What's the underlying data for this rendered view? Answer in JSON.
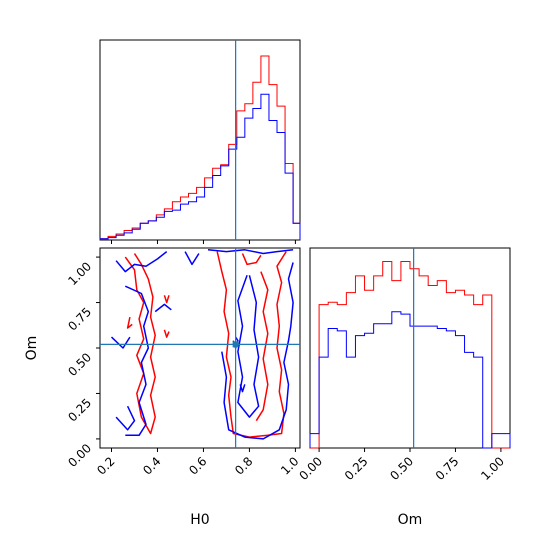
{
  "chart_data": {
    "type": "corner",
    "parameters": [
      "H0",
      "Om"
    ],
    "axis_labels": {
      "x_left": "H0",
      "x_right": "Om",
      "y_left": "Om"
    },
    "colors": {
      "red": "#ff0000",
      "blue": "#0000ff",
      "truth": "#1f77b4"
    },
    "truth": {
      "H0": 0.74,
      "Om": 0.52
    },
    "h0_range": [
      0.15,
      1.02
    ],
    "om_range": [
      -0.05,
      1.05
    ],
    "h0_ticks": [
      "0.2",
      "0.4",
      "0.6",
      "0.8",
      "1.0"
    ],
    "h0_tick_values": [
      0.2,
      0.4,
      0.6,
      0.8,
      1.0
    ],
    "om_ticks": [
      "0.00",
      "0.25",
      "0.50",
      "0.75",
      "1.00"
    ],
    "om_tick_values": [
      0.0,
      0.25,
      0.5,
      0.75,
      1.0
    ],
    "h0_hist": {
      "bin_edges": [
        0.15,
        0.185,
        0.22,
        0.255,
        0.29,
        0.325,
        0.36,
        0.395,
        0.43,
        0.465,
        0.5,
        0.535,
        0.57,
        0.605,
        0.64,
        0.675,
        0.71,
        0.745,
        0.78,
        0.815,
        0.85,
        0.885,
        0.92,
        0.955,
        0.99,
        1.02
      ],
      "series": [
        {
          "color": "red",
          "values": [
            0.5,
            1.5,
            2.5,
            4.0,
            5.0,
            7.0,
            8.0,
            10.5,
            13.0,
            16.0,
            18.0,
            19.5,
            22.0,
            26.0,
            30.0,
            31.5,
            40.0,
            54.0,
            57.0,
            66.0,
            77.0,
            65.0,
            56.0,
            32.0,
            7.0
          ]
        },
        {
          "color": "blue",
          "values": [
            0.5,
            1.0,
            2.0,
            3.0,
            4.5,
            7.0,
            8.0,
            9.5,
            12.0,
            12.5,
            15.0,
            16.0,
            18.0,
            22.0,
            27.0,
            31.0,
            38.0,
            43.0,
            51.0,
            55.0,
            61.0,
            50.0,
            45.0,
            28.0,
            7.0
          ]
        }
      ],
      "ymax": 82
    },
    "om_hist": {
      "bin_edges": [
        -0.05,
        0.0,
        0.05,
        0.1,
        0.15,
        0.2,
        0.25,
        0.3,
        0.35,
        0.4,
        0.45,
        0.5,
        0.55,
        0.6,
        0.65,
        0.7,
        0.75,
        0.8,
        0.85,
        0.9,
        0.95,
        1.0,
        1.05
      ],
      "series": [
        {
          "color": "red",
          "values": [
            0,
            60.0,
            61.0,
            60.0,
            65.0,
            72.0,
            66.0,
            72.0,
            78.0,
            70.0,
            78.0,
            75.0,
            72.0,
            68.0,
            70.0,
            65.0,
            66.0,
            64.0,
            60.0,
            64.0,
            0,
            0
          ]
        },
        {
          "color": "blue",
          "values": [
            6.0,
            38.0,
            50.0,
            49.0,
            38.0,
            47.0,
            48.0,
            52.0,
            52.0,
            57.0,
            56.0,
            51.0,
            51.0,
            51.0,
            50.0,
            49.0,
            47.0,
            40.0,
            38.0,
            0,
            6.0,
            6.0
          ]
        }
      ],
      "ymax": 82
    },
    "contours": [
      {
        "color": "red",
        "path": [
          [
            0.26,
            1.0
          ],
          [
            0.3,
            0.93
          ],
          [
            0.31,
            0.82
          ],
          [
            0.34,
            0.75
          ],
          [
            0.32,
            0.66
          ],
          [
            0.34,
            0.55
          ],
          [
            0.31,
            0.46
          ],
          [
            0.34,
            0.36
          ],
          [
            0.31,
            0.25
          ],
          [
            0.33,
            0.12
          ],
          [
            0.37,
            0.03
          ],
          [
            0.39,
            0.12
          ],
          [
            0.37,
            0.24
          ],
          [
            0.39,
            0.34
          ],
          [
            0.37,
            0.45
          ],
          [
            0.39,
            0.57
          ],
          [
            0.37,
            0.67
          ],
          [
            0.38,
            0.78
          ],
          [
            0.36,
            0.88
          ],
          [
            0.33,
            0.96
          ],
          [
            0.3,
            1.02
          ]
        ]
      },
      {
        "color": "red",
        "path": [
          [
            0.66,
            1.03
          ],
          [
            0.68,
            0.92
          ],
          [
            0.7,
            0.82
          ],
          [
            0.69,
            0.7
          ],
          [
            0.71,
            0.58
          ],
          [
            0.7,
            0.45
          ],
          [
            0.72,
            0.34
          ],
          [
            0.71,
            0.24
          ],
          [
            0.72,
            0.12
          ],
          [
            0.73,
            0.03
          ],
          [
            0.8,
            0.01
          ],
          [
            0.88,
            0.02
          ],
          [
            0.94,
            0.03
          ],
          [
            0.95,
            0.14
          ],
          [
            0.93,
            0.26
          ],
          [
            0.94,
            0.38
          ],
          [
            0.92,
            0.5
          ],
          [
            0.93,
            0.62
          ],
          [
            0.92,
            0.74
          ],
          [
            0.94,
            0.86
          ],
          [
            0.92,
            0.95
          ],
          [
            0.96,
            1.03
          ]
        ]
      },
      {
        "color": "red",
        "path": [
          [
            0.85,
            0.92
          ],
          [
            0.88,
            0.82
          ],
          [
            0.86,
            0.7
          ],
          [
            0.88,
            0.58
          ],
          [
            0.86,
            0.44
          ],
          [
            0.88,
            0.3
          ],
          [
            0.86,
            0.16
          ],
          [
            0.83,
            0.1
          ]
        ]
      },
      {
        "color": "red",
        "path": [
          [
            0.77,
            1.02
          ],
          [
            0.79,
            0.96
          ],
          [
            0.83,
            0.97
          ],
          [
            0.85,
            1.01
          ]
        ]
      },
      {
        "color": "red",
        "path": [
          [
            0.43,
            0.79
          ],
          [
            0.44,
            0.75
          ],
          [
            0.45,
            0.79
          ]
        ]
      },
      {
        "color": "red",
        "path": [
          [
            0.28,
            0.67
          ],
          [
            0.27,
            0.61
          ],
          [
            0.29,
            0.63
          ]
        ]
      },
      {
        "color": "red",
        "path": [
          [
            0.43,
            0.6
          ],
          [
            0.44,
            0.56
          ],
          [
            0.45,
            0.59
          ]
        ]
      },
      {
        "color": "blue",
        "path": [
          [
            0.22,
            0.98
          ],
          [
            0.26,
            0.92
          ],
          [
            0.3,
            0.96
          ],
          [
            0.35,
            0.95
          ],
          [
            0.4,
            0.99
          ],
          [
            0.44,
            1.03
          ]
        ]
      },
      {
        "color": "blue",
        "path": [
          [
            0.52,
            1.03
          ],
          [
            0.55,
            0.96
          ],
          [
            0.58,
            1.02
          ]
        ]
      },
      {
        "color": "blue",
        "path": [
          [
            0.62,
            1.04
          ],
          [
            0.7,
            1.03
          ],
          [
            0.78,
            1.04
          ],
          [
            0.86,
            1.02
          ],
          [
            0.92,
            1.03
          ],
          [
            0.99,
            1.04
          ]
        ]
      },
      {
        "color": "blue",
        "path": [
          [
            0.26,
            0.84
          ],
          [
            0.33,
            0.8
          ],
          [
            0.36,
            0.7
          ],
          [
            0.34,
            0.62
          ],
          [
            0.36,
            0.5
          ],
          [
            0.33,
            0.42
          ],
          [
            0.35,
            0.3
          ],
          [
            0.32,
            0.2
          ],
          [
            0.35,
            0.08
          ],
          [
            0.32,
            0.02
          ],
          [
            0.26,
            0.02
          ]
        ]
      },
      {
        "color": "blue",
        "path": [
          [
            0.2,
            0.56
          ],
          [
            0.25,
            0.5
          ],
          [
            0.28,
            0.56
          ]
        ]
      },
      {
        "color": "blue",
        "path": [
          [
            0.22,
            0.12
          ],
          [
            0.27,
            0.05
          ],
          [
            0.3,
            0.1
          ],
          [
            0.27,
            0.18
          ]
        ]
      },
      {
        "color": "blue",
        "path": [
          [
            0.39,
            0.7
          ],
          [
            0.43,
            0.74
          ],
          [
            0.46,
            0.71
          ]
        ]
      },
      {
        "color": "blue",
        "path": [
          [
            0.68,
            0.48
          ],
          [
            0.7,
            0.34
          ],
          [
            0.69,
            0.2
          ],
          [
            0.71,
            0.05
          ],
          [
            0.78,
            0.01
          ],
          [
            0.86,
            0.0
          ],
          [
            0.93,
            0.05
          ],
          [
            0.96,
            0.16
          ],
          [
            0.97,
            0.3
          ],
          [
            0.95,
            0.42
          ],
          [
            0.97,
            0.54
          ],
          [
            0.98,
            0.62
          ],
          [
            0.99,
            0.75
          ],
          [
            0.97,
            0.88
          ],
          [
            0.99,
            0.97
          ]
        ]
      },
      {
        "color": "blue",
        "path": [
          [
            0.8,
            0.9
          ],
          [
            0.83,
            0.75
          ],
          [
            0.82,
            0.6
          ],
          [
            0.84,
            0.45
          ],
          [
            0.82,
            0.3
          ],
          [
            0.84,
            0.18
          ],
          [
            0.8,
            0.12
          ],
          [
            0.75,
            0.2
          ],
          [
            0.77,
            0.34
          ],
          [
            0.75,
            0.48
          ],
          [
            0.77,
            0.62
          ],
          [
            0.75,
            0.76
          ],
          [
            0.79,
            0.9
          ]
        ]
      },
      {
        "color": "blue",
        "path": [
          [
            0.73,
            0.54
          ],
          [
            0.74,
            0.5
          ],
          [
            0.75,
            0.54
          ],
          [
            0.74,
            0.56
          ]
        ]
      },
      {
        "color": "blue",
        "path": [
          [
            0.76,
            0.3
          ],
          [
            0.77,
            0.26
          ],
          [
            0.78,
            0.3
          ]
        ]
      }
    ]
  }
}
